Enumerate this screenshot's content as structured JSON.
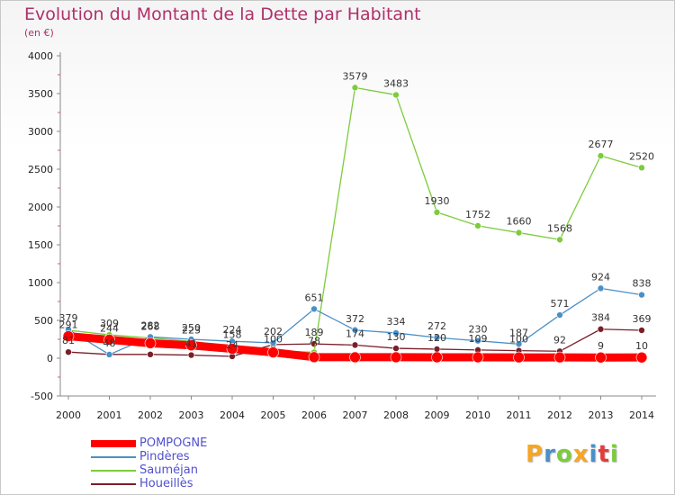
{
  "chart_data": {
    "type": "line",
    "title": "Evolution du Montant de la Dette par Habitant",
    "subtitle": "(en €)",
    "x": [
      "2000",
      "2001",
      "2002",
      "2003",
      "2004",
      "2005",
      "2006",
      "2007",
      "2008",
      "2009",
      "2010",
      "2011",
      "2012",
      "2013",
      "2014"
    ],
    "ylim": [
      -500,
      4000
    ],
    "yticks": [
      -500,
      0,
      500,
      1000,
      1500,
      2000,
      2500,
      3000,
      3500,
      4000
    ],
    "grid": false,
    "legend": "bottom-left",
    "series": [
      {
        "name": "POMPOGNE",
        "color": "#ff0000",
        "values": [
          291,
          244,
          198,
          170,
          124,
          77,
          14,
          13,
          13,
          12,
          12,
          11,
          11,
          9,
          10
        ],
        "labels": [
          "291",
          "244",
          "",
          "",
          "",
          "",
          "",
          "",
          "",
          "",
          "",
          "",
          "",
          "9",
          "10"
        ]
      },
      {
        "name": "Pindères",
        "color": "#4a90c8",
        "values": [
          379,
          48,
          282,
          250,
          224,
          202,
          651,
          372,
          334,
          272,
          230,
          187,
          571,
          924,
          838
        ],
        "labels": [
          "379",
          "48",
          "282",
          "250",
          "224",
          "202",
          "651",
          "372",
          "334",
          "272",
          "230",
          "187",
          "571",
          "924",
          "838"
        ]
      },
      {
        "name": "Sauméjan",
        "color": "#7ccc3c",
        "values": [
          370,
          309,
          268,
          223,
          158,
          100,
          78,
          3579,
          3483,
          1930,
          1752,
          1660,
          1568,
          2677,
          2520
        ],
        "labels": [
          "",
          "309",
          "268",
          "223",
          "158",
          "100",
          "78",
          "3579",
          "3483",
          "1930",
          "1752",
          "1660",
          "1568",
          "2677",
          "2520"
        ]
      },
      {
        "name": "Houeillès",
        "color": "#7a1e28",
        "values": [
          81,
          50,
          50,
          41,
          24,
          180,
          189,
          174,
          130,
          120,
          109,
          100,
          92,
          384,
          369
        ],
        "labels": [
          "81",
          "",
          "",
          "41",
          "24",
          "",
          "189",
          "174",
          "130",
          "120",
          "109",
          "100",
          "92",
          "384",
          "369"
        ]
      }
    ]
  },
  "brand": {
    "logo_text": "Proxiti",
    "colors": [
      "#f5a623",
      "#4a90c8",
      "#7ccc3c",
      "#f5a623",
      "#4a90c8",
      "#e23c3c",
      "#7ccc3c"
    ]
  }
}
